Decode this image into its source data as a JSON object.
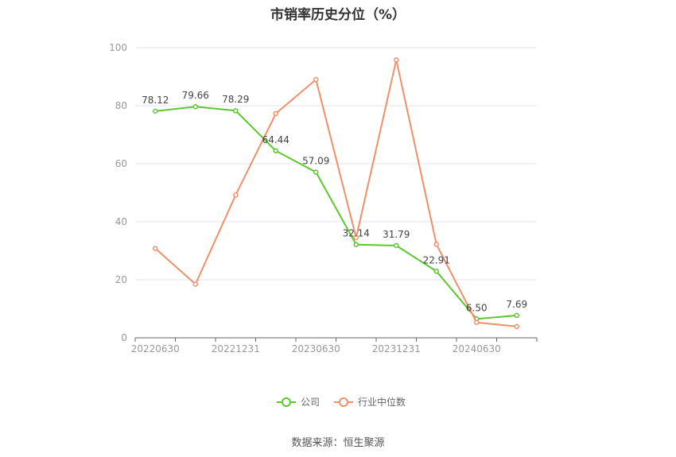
{
  "chart_data": {
    "type": "line",
    "title": "市销率历史分位（%）",
    "categories": [
      "20220630",
      "20220930",
      "20221231",
      "20230331",
      "20230630",
      "20230930",
      "20231231",
      "20240331",
      "20240630",
      "20240930"
    ],
    "x_tick_labels": [
      "20220630",
      "20221231",
      "20230630",
      "20231231",
      "20240630"
    ],
    "y_ticks": [
      0,
      20,
      40,
      60,
      80,
      100
    ],
    "ylim": [
      0,
      100
    ],
    "grid": true,
    "legend_position": "bottom",
    "series": [
      {
        "name": "公司",
        "color": "#5cc72e",
        "values": [
          78.12,
          79.66,
          78.29,
          64.44,
          57.09,
          32.14,
          31.79,
          22.91,
          6.5,
          7.69
        ],
        "labels": [
          "78.12",
          "79.66",
          "78.29",
          "64.44",
          "57.09",
          "32.14",
          "31.79",
          "22.91",
          "6.50",
          "7.69"
        ]
      },
      {
        "name": "行业中位数",
        "color": "#f0906a",
        "values": [
          30.8,
          18.5,
          49.2,
          77.3,
          89.0,
          34.5,
          95.8,
          32.2,
          5.3,
          3.9
        ]
      }
    ]
  },
  "footer": {
    "source": "数据来源：恒生聚源"
  }
}
